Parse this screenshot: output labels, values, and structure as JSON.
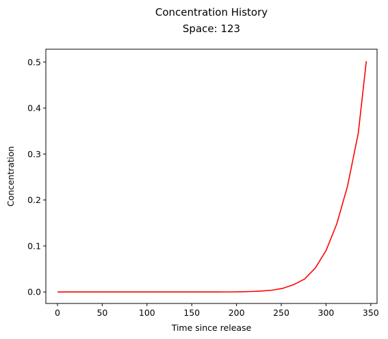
{
  "chart_data": {
    "type": "line",
    "title": "Concentration History",
    "subtitle": "Space: 123",
    "xlabel": "Time since release",
    "ylabel": "Concentration",
    "xlim": [
      -13,
      357
    ],
    "ylim": [
      -0.025,
      0.528
    ],
    "x_ticks": [
      0,
      50,
      100,
      150,
      200,
      250,
      300,
      350
    ],
    "x_tick_labels": [
      "0",
      "50",
      "100",
      "150",
      "200",
      "250",
      "300",
      "350"
    ],
    "y_ticks": [
      0.0,
      0.1,
      0.2,
      0.3,
      0.4,
      0.5
    ],
    "y_tick_labels": [
      "0.0",
      "0.1",
      "0.2",
      "0.3",
      "0.4",
      "0.5"
    ],
    "grid": false,
    "series": [
      {
        "color": "#ff0000",
        "x": [
          0,
          12,
          24,
          36,
          48,
          60,
          72,
          84,
          96,
          108,
          120,
          132,
          144,
          156,
          168,
          180,
          192,
          204,
          216,
          228,
          240,
          252,
          264,
          276,
          288,
          300,
          312,
          324,
          336,
          345
        ],
        "y": [
          0,
          0,
          0,
          0,
          0,
          0,
          0,
          0,
          0,
          0,
          0,
          0,
          0,
          0,
          0,
          0,
          0.0001,
          0.0004,
          0.001,
          0.002,
          0.004,
          0.008,
          0.016,
          0.028,
          0.052,
          0.09,
          0.148,
          0.23,
          0.345,
          0.502
        ]
      }
    ]
  }
}
